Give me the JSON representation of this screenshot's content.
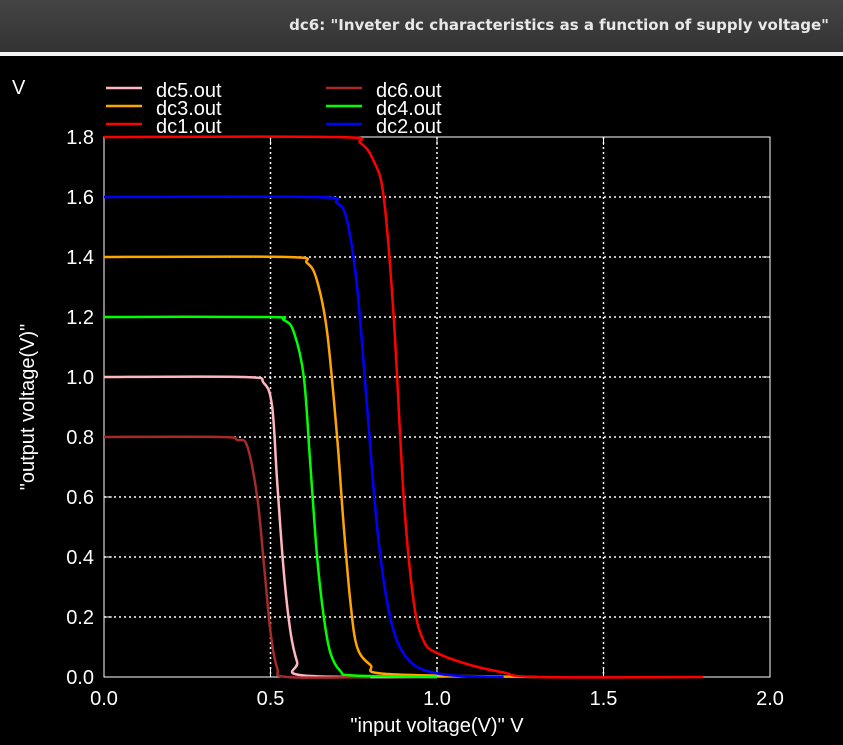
{
  "window": {
    "title": "dc6: \"Inveter dc characteristics as a function of supply voltage\""
  },
  "chart_data": {
    "type": "line",
    "xlabel": "\"input voltage(V)\"  V",
    "ylabel": "\"output voltage(V)\"",
    "y_unit": "V",
    "xlim": [
      0,
      2.0
    ],
    "ylim": [
      0,
      1.8
    ],
    "x_ticks": [
      "0.0",
      "0.5",
      "1.0",
      "1.5",
      "2.0"
    ],
    "y_ticks": [
      "0.0",
      "0.2",
      "0.4",
      "0.6",
      "0.8",
      "1.0",
      "1.2",
      "1.4",
      "1.6",
      "1.8"
    ],
    "grid": true,
    "legend_position": "top-left",
    "series": [
      {
        "name": "dc5.out",
        "color": "#ffb6c1",
        "x": [
          0,
          0.42,
          0.48,
          0.505,
          0.52,
          0.54,
          0.56,
          0.58,
          0.6,
          1.0
        ],
        "y": [
          1.0,
          1.0,
          0.98,
          0.9,
          0.65,
          0.35,
          0.15,
          0.05,
          0.005,
          0.0
        ]
      },
      {
        "name": "dc6.out",
        "color": "#a52a2a",
        "x": [
          0,
          0.35,
          0.4,
          0.43,
          0.46,
          0.48,
          0.5,
          0.52,
          0.55,
          0.8
        ],
        "y": [
          0.8,
          0.8,
          0.79,
          0.77,
          0.6,
          0.38,
          0.15,
          0.03,
          0.0,
          0.0
        ]
      },
      {
        "name": "dc3.out",
        "color": "#ffa500",
        "x": [
          0,
          0.55,
          0.61,
          0.64,
          0.67,
          0.7,
          0.72,
          0.74,
          0.76,
          0.8,
          0.85,
          1.3
        ],
        "y": [
          1.4,
          1.4,
          1.38,
          1.32,
          1.15,
          0.8,
          0.5,
          0.25,
          0.1,
          0.04,
          0.01,
          0.0
        ]
      },
      {
        "name": "dc4.out",
        "color": "#00ff00",
        "x": [
          0,
          0.49,
          0.54,
          0.57,
          0.6,
          0.62,
          0.64,
          0.66,
          0.68,
          0.71,
          0.75,
          1.0
        ],
        "y": [
          1.2,
          1.2,
          1.19,
          1.15,
          1.0,
          0.7,
          0.4,
          0.2,
          0.08,
          0.02,
          0.005,
          0.0
        ]
      },
      {
        "name": "dc1.out",
        "color": "#ff0000",
        "x": [
          0,
          0.7,
          0.77,
          0.81,
          0.84,
          0.87,
          0.9,
          0.93,
          0.96,
          1.0,
          1.1,
          1.2,
          1.3,
          1.8
        ],
        "y": [
          1.8,
          1.8,
          1.78,
          1.72,
          1.6,
          1.2,
          0.6,
          0.25,
          0.12,
          0.08,
          0.04,
          0.015,
          0.0,
          0.0
        ]
      },
      {
        "name": "dc2.out",
        "color": "#0000ff",
        "x": [
          0,
          0.63,
          0.7,
          0.73,
          0.76,
          0.79,
          0.82,
          0.85,
          0.88,
          0.92,
          0.97,
          1.05,
          1.2
        ],
        "y": [
          1.6,
          1.6,
          1.58,
          1.52,
          1.3,
          0.9,
          0.5,
          0.25,
          0.12,
          0.05,
          0.02,
          0.005,
          0.0
        ]
      }
    ]
  }
}
